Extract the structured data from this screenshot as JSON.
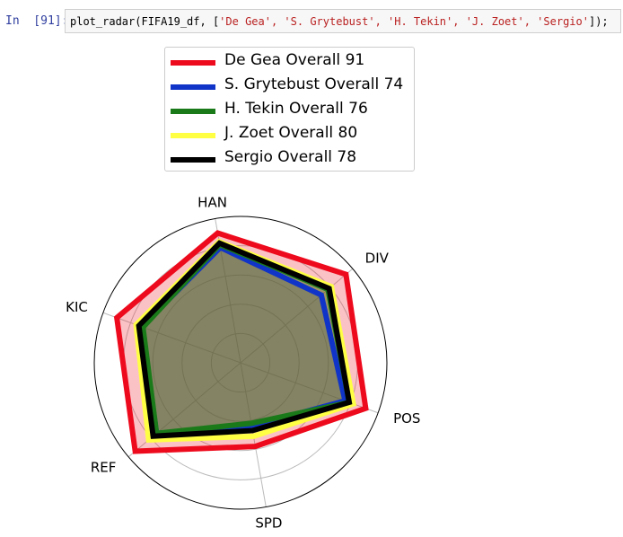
{
  "cell": {
    "prompt": "In  [91]:",
    "code_fn": "plot_radar(FIFA19_df, [",
    "code_args": "'De Gea', 'S. Grytebust', 'H. Tekin', 'J. Zoet', 'Sergio'",
    "code_end": "]);"
  },
  "chart_data": {
    "type": "radar",
    "axes": [
      "HAN",
      "DIV",
      "POS",
      "SPD",
      "REF",
      "KIC"
    ],
    "rlim": [
      0,
      100
    ],
    "grid": true,
    "legend_placement": "top-center",
    "series": [
      {
        "name": "De Gea Overall 91",
        "color": "#ee0a1d",
        "values": [
          90,
          94,
          91,
          58,
          94,
          90
        ]
      },
      {
        "name": "S. Grytebust Overall 74",
        "color": "#1033c8",
        "values": [
          80,
          72,
          76,
          44,
          75,
          72
        ]
      },
      {
        "name": "H. Tekin Overall 76",
        "color": "#1a7a1a",
        "values": [
          82,
          78,
          79,
          42,
          75,
          71
        ]
      },
      {
        "name": "J. Zoet Overall 80",
        "color": "#ffff44",
        "values": [
          84,
          81,
          82,
          51,
          82,
          76
        ]
      },
      {
        "name": "Sergio Overall 78",
        "color": "#000000",
        "values": [
          83,
          79,
          79,
          47,
          78,
          74
        ]
      }
    ]
  }
}
